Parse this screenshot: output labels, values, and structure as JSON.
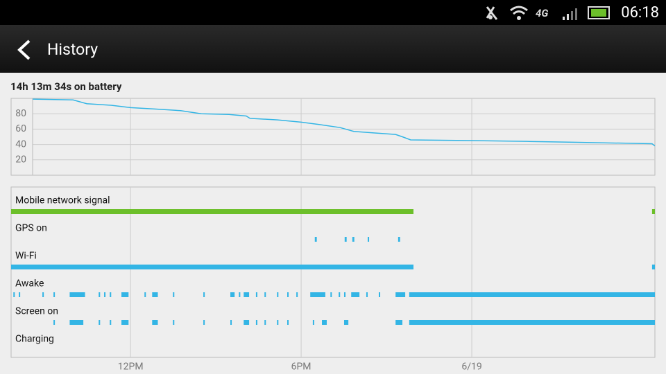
{
  "status_bar": {
    "time": "06:18"
  },
  "header": {
    "title": "History"
  },
  "summary": "14h 13m 34s on battery",
  "chart_data": {
    "type": "line",
    "xlim": [
      7.8,
      30.44
    ],
    "xticks": [
      {
        "value": 12,
        "label": "12PM"
      },
      {
        "value": 18,
        "label": "6PM"
      },
      {
        "value": 24,
        "label": "6/19"
      }
    ],
    "ylim": [
      0,
      100
    ],
    "yticks": [
      20,
      40,
      60,
      80
    ],
    "grid": true,
    "x": [
      8.56,
      9.98,
      10.46,
      11.32,
      12,
      12.9,
      13.76,
      14.49,
      15.46,
      16.07,
      16.2,
      17.17,
      18,
      18.63,
      19.37,
      19.85,
      20.59,
      21.32,
      21.56,
      21.85,
      24,
      25.95,
      27.41,
      30.34,
      30.44
    ],
    "series": [
      {
        "color": "#33b5e5",
        "values": [
          99,
          98,
          93,
          91,
          88,
          86,
          84,
          80,
          79,
          77,
          74,
          72,
          69,
          66,
          62,
          57,
          55,
          53,
          50,
          46,
          45,
          44,
          43,
          41,
          38
        ]
      }
    ],
    "lanes": [
      {
        "label": "Mobile network signal",
        "color": "#6cbf2a",
        "segments": [
          [
            7.8,
            21.95
          ],
          [
            30.34,
            30.44
          ]
        ]
      },
      {
        "label": "GPS on",
        "color": "#33b5e5",
        "segments": [
          [
            18.48,
            18.55
          ],
          [
            19.53,
            19.6
          ],
          [
            19.8,
            19.87
          ],
          [
            20.34,
            20.39
          ],
          [
            21.41,
            21.48
          ]
        ]
      },
      {
        "label": "Wi-Fi",
        "color": "#33b5e5",
        "segments": [
          [
            7.8,
            21.95
          ],
          [
            30.34,
            30.44
          ]
        ]
      },
      {
        "label": "Awake",
        "color": "#33b5e5",
        "segments": [
          [
            7.88,
            7.93
          ],
          [
            8.07,
            8.12
          ],
          [
            8.9,
            8.95
          ],
          [
            9.29,
            9.34
          ],
          [
            9.86,
            10.4
          ],
          [
            10.88,
            10.93
          ],
          [
            11.07,
            11.12
          ],
          [
            11.27,
            11.32
          ],
          [
            11.68,
            11.93
          ],
          [
            12.49,
            12.54
          ],
          [
            12.76,
            12.96
          ],
          [
            13.49,
            13.54
          ],
          [
            14.56,
            14.61
          ],
          [
            15.51,
            15.66
          ],
          [
            15.81,
            15.86
          ],
          [
            15.98,
            16.17
          ],
          [
            16.41,
            16.46
          ],
          [
            16.71,
            16.76
          ],
          [
            17.15,
            17.2
          ],
          [
            17.51,
            17.56
          ],
          [
            17.83,
            17.88
          ],
          [
            18.32,
            18.85
          ],
          [
            19.03,
            19.08
          ],
          [
            19.32,
            19.37
          ],
          [
            19.51,
            19.56
          ],
          [
            19.76,
            20.05
          ],
          [
            20.29,
            20.34
          ],
          [
            20.73,
            20.78
          ],
          [
            21.32,
            21.66
          ],
          [
            21.8,
            30.44
          ]
        ]
      },
      {
        "label": "Screen on",
        "color": "#33b5e5",
        "segments": [
          [
            9.29,
            9.34
          ],
          [
            9.86,
            10.34
          ],
          [
            10.88,
            10.93
          ],
          [
            11.27,
            11.32
          ],
          [
            11.68,
            11.93
          ],
          [
            12.76,
            12.96
          ],
          [
            13.49,
            13.54
          ],
          [
            14.56,
            14.61
          ],
          [
            15.51,
            15.56
          ],
          [
            15.98,
            16.17
          ],
          [
            16.41,
            16.46
          ],
          [
            16.71,
            16.76
          ],
          [
            17.15,
            17.2
          ],
          [
            17.51,
            17.56
          ],
          [
            18.41,
            18.46
          ],
          [
            18.73,
            18.9
          ],
          [
            19.51,
            19.66
          ],
          [
            21.32,
            21.56
          ],
          [
            21.8,
            30.44
          ]
        ]
      },
      {
        "label": "Charging",
        "color": "#33b5e5",
        "segments": []
      }
    ]
  }
}
